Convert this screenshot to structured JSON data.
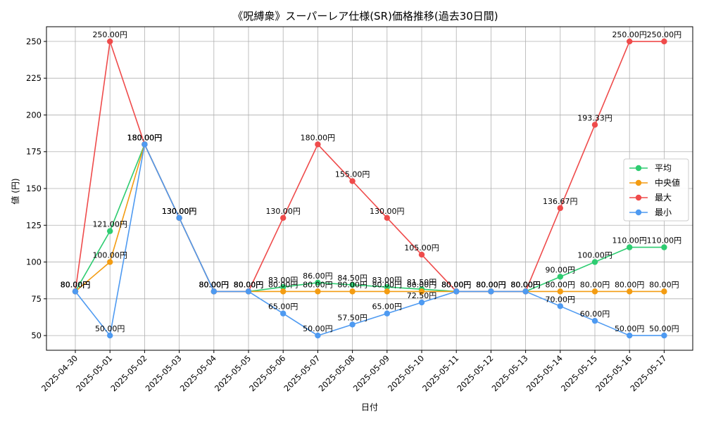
{
  "chart_data": {
    "type": "line",
    "title": "《呪縛衆》スーパーレア仕様(SR)価格推移(過去30日間)",
    "xlabel": "日付",
    "ylabel": "値 (円)",
    "ylim": [
      40,
      260
    ],
    "yticks": [
      50,
      75,
      100,
      125,
      150,
      175,
      200,
      225,
      250
    ],
    "grid": true,
    "legend_position": "right",
    "categories": [
      "2025-04-30",
      "2025-05-01",
      "2025-05-02",
      "2025-05-03",
      "2025-05-04",
      "2025-05-05",
      "2025-05-06",
      "2025-05-07",
      "2025-05-08",
      "2025-05-09",
      "2025-05-10",
      "2025-05-11",
      "2025-05-12",
      "2025-05-13",
      "2025-05-14",
      "2025-05-15",
      "2025-05-16",
      "2025-05-17"
    ],
    "series": [
      {
        "name": "平均",
        "color": "#2ecc71",
        "values": [
          80,
          121,
          180,
          130,
          80,
          80,
          83,
          86,
          84.5,
          83,
          81.5,
          80,
          80,
          80,
          90,
          100,
          110,
          110
        ],
        "labels": [
          "80.00円",
          "121.00円",
          "180.00円",
          "130.00円",
          "80.00円",
          "80.00円",
          "83.00円",
          "86.00円",
          "84.50円",
          "83.00円",
          "81.50円",
          "80.00円",
          "80.00円",
          "80.00円",
          "90.00円",
          "100.00円",
          "110.00円",
          "110.00円"
        ]
      },
      {
        "name": "中央値",
        "color": "#f39c12",
        "values": [
          80,
          100,
          180,
          130,
          80,
          80,
          80,
          80,
          80,
          80,
          80,
          80,
          80,
          80,
          80,
          80,
          80,
          80
        ],
        "labels": [
          "80.00円",
          "100.00円",
          "180.00円",
          "130.00円",
          "80.00円",
          "80.00円",
          "80.00円",
          "80.00円",
          "80.00円",
          "80.00円",
          "80.00円",
          "80.00円",
          "80.00円",
          "80.00円",
          "80.00円",
          "80.00円",
          "80.00円",
          "80.00円"
        ]
      },
      {
        "name": "最大",
        "color": "#ef4b4b",
        "values": [
          80,
          250,
          180,
          130,
          80,
          80,
          130,
          180,
          155,
          130,
          105,
          80,
          80,
          80,
          136.67,
          193.33,
          250,
          250
        ],
        "labels": [
          "80.00円",
          "250.00円",
          "180.00円",
          "130.00円",
          "80.00円",
          "80.00円",
          "130.00円",
          "180.00円",
          "155.00円",
          "130.00円",
          "105.00円",
          "80.00円",
          "80.00円",
          "80.00円",
          "136.67円",
          "193.33円",
          "250.00円",
          "250.00円"
        ]
      },
      {
        "name": "最小",
        "color": "#4e9af1",
        "values": [
          80,
          50,
          180,
          130,
          80,
          80,
          65,
          50,
          57.5,
          65,
          72.5,
          80,
          80,
          80,
          70,
          60,
          50,
          50
        ],
        "labels": [
          "80.00円",
          "50.00円",
          "180.00円",
          "130.00円",
          "80.00円",
          "80.00円",
          "65.00円",
          "50.00円",
          "57.50円",
          "65.00円",
          "72.50円",
          "80.00円",
          "80.00円",
          "80.00円",
          "70.00円",
          "60.00円",
          "50.00円",
          "50.00円"
        ]
      }
    ]
  }
}
